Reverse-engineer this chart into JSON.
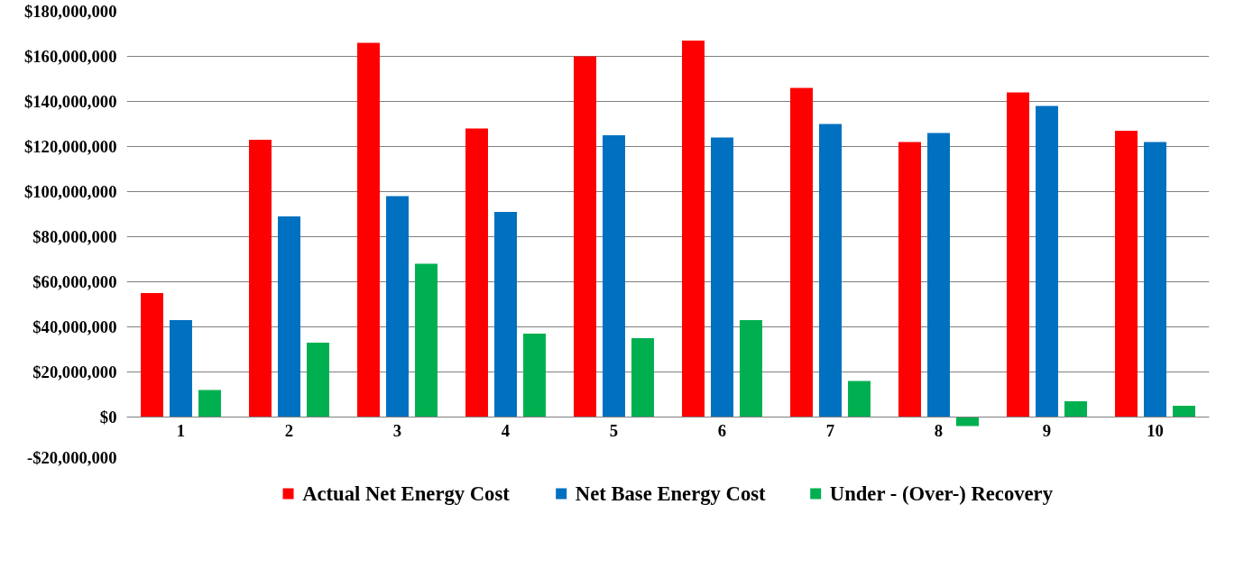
{
  "chart_data": {
    "type": "bar",
    "categories": [
      "1",
      "2",
      "3",
      "4",
      "5",
      "6",
      "7",
      "8",
      "9",
      "10"
    ],
    "series": [
      {
        "name": "Actual Net Energy Cost",
        "color": "#ff0000",
        "values": [
          55000000,
          123000000,
          166000000,
          128000000,
          160000000,
          167000000,
          146000000,
          122000000,
          144000000,
          127000000
        ]
      },
      {
        "name": "Net Base Energy Cost",
        "color": "#0070c0",
        "values": [
          43000000,
          89000000,
          98000000,
          91000000,
          125000000,
          124000000,
          130000000,
          126000000,
          138000000,
          122000000
        ]
      },
      {
        "name": "Under - (Over-) Recovery",
        "color": "#00b050",
        "values": [
          12000000,
          33000000,
          68000000,
          37000000,
          35000000,
          43000000,
          16000000,
          -4000000,
          7000000,
          5000000
        ]
      }
    ],
    "ylim": [
      -20000000,
      180000000
    ],
    "yticks": [
      {
        "value": -20000000,
        "label": "-$20,000,000"
      },
      {
        "value": 0,
        "label": "$0"
      },
      {
        "value": 20000000,
        "label": "$20,000,000"
      },
      {
        "value": 40000000,
        "label": "$40,000,000"
      },
      {
        "value": 60000000,
        "label": "$60,000,000"
      },
      {
        "value": 80000000,
        "label": "$80,000,000"
      },
      {
        "value": 100000000,
        "label": "$100,000,000"
      },
      {
        "value": 120000000,
        "label": "$120,000,000"
      },
      {
        "value": 140000000,
        "label": "$140,000,000"
      },
      {
        "value": 160000000,
        "label": "$160,000,000"
      },
      {
        "value": 180000000,
        "label": "$180,000,000"
      }
    ],
    "grid": "y",
    "legend": "bottom"
  }
}
